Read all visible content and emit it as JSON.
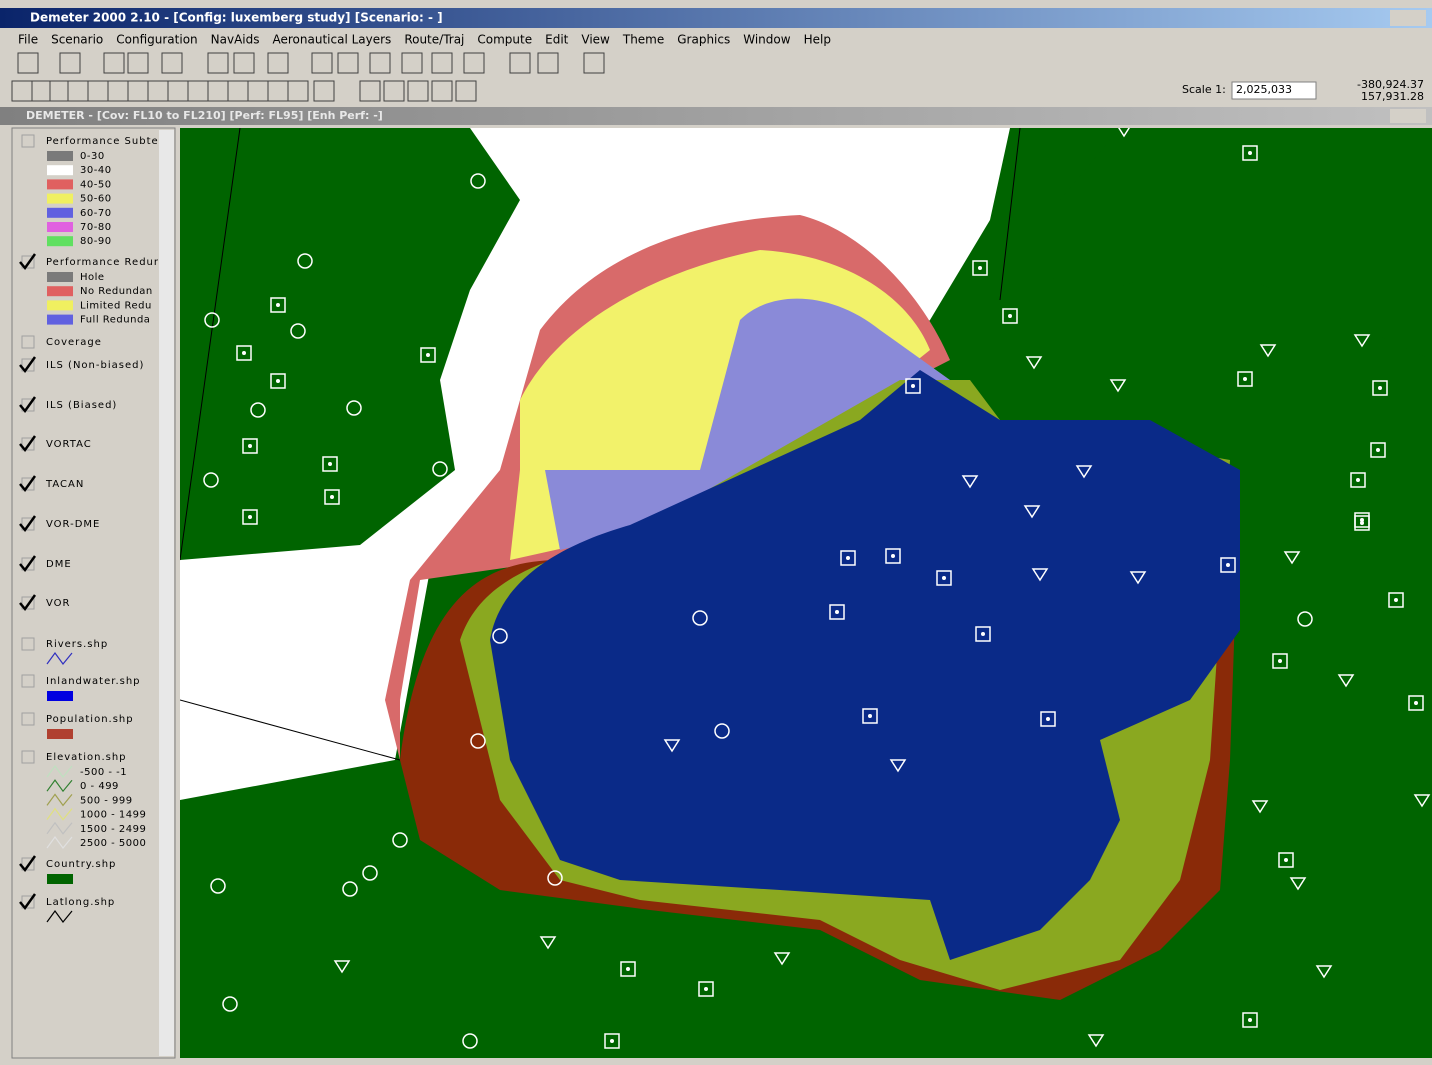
{
  "window": {
    "title": "Demeter 2000 2.10 - [Config: luxemberg study] [Scenario: - ]"
  },
  "menu": [
    "File",
    "Scenario",
    "Configuration",
    "NavAids",
    "Aeronautical Layers",
    "Route/Traj",
    "Compute",
    "Edit",
    "View",
    "Theme",
    "Graphics",
    "Window",
    "Help"
  ],
  "toolbar": {
    "scale_label": "Scale 1:",
    "scale_value": "2,025,033",
    "coord_x": "-380,924.37",
    "coord_y": "157,931.28"
  },
  "map_window": {
    "title": "DEMETER - [Cov: FL10 to FL210] [Perf: FL95] [Enh Perf: -]"
  },
  "layers": [
    {
      "name": "Performance Subte",
      "checked": false,
      "items": [
        {
          "label": "0-30",
          "swatch": "#7a7a7a"
        },
        {
          "label": "30-40",
          "swatch": "#ffffff"
        },
        {
          "label": "40-50",
          "swatch": "#e06060"
        },
        {
          "label": "50-60",
          "swatch": "#f0f060"
        },
        {
          "label": "60-70",
          "swatch": "#6060e0"
        },
        {
          "label": "70-80",
          "swatch": "#e060e0"
        },
        {
          "label": "80-90",
          "swatch": "#60e060"
        }
      ]
    },
    {
      "name": "Performance Redur",
      "checked": true,
      "items": [
        {
          "label": "Hole",
          "swatch": "#7a7a7a"
        },
        {
          "label": "No Redundan",
          "swatch": "#e06060"
        },
        {
          "label": "Limited Redu",
          "swatch": "#f0f060"
        },
        {
          "label": "Full Redunda",
          "swatch": "#6060e0"
        }
      ]
    },
    {
      "name": "Coverage",
      "checked": false,
      "items": []
    },
    {
      "name": "ILS (Non-biased)",
      "checked": true,
      "items": []
    },
    {
      "name": "ILS (Biased)",
      "checked": true,
      "items": []
    },
    {
      "name": "VORTAC",
      "checked": true,
      "items": []
    },
    {
      "name": "TACAN",
      "checked": true,
      "items": []
    },
    {
      "name": "VOR-DME",
      "checked": true,
      "items": []
    },
    {
      "name": "DME",
      "checked": true,
      "items": []
    },
    {
      "name": "VOR",
      "checked": true,
      "items": []
    },
    {
      "name": "Rivers.shp",
      "checked": false,
      "items": [
        {
          "line": "#3030c0"
        }
      ]
    },
    {
      "name": "Inlandwater.shp",
      "checked": false,
      "items": [
        {
          "swatch": "#0000e0"
        }
      ]
    },
    {
      "name": "Population.shp",
      "checked": false,
      "items": [
        {
          "swatch": "#b04030"
        }
      ]
    },
    {
      "name": "Elevation.shp",
      "checked": false,
      "items": [
        {
          "label": "-500 - -1",
          "line": "#c0e0c0"
        },
        {
          "label": "0 - 499",
          "line": "#308030"
        },
        {
          "label": "500 - 999",
          "line": "#a0a050"
        },
        {
          "label": "1000 - 1499",
          "line": "#e0e080"
        },
        {
          "label": "1500 - 2499",
          "line": "#c0c0c0"
        },
        {
          "label": "2500 - 5000",
          "line": "#e0e0e0"
        }
      ]
    },
    {
      "name": "Country.shp",
      "checked": true,
      "items": [
        {
          "swatch": "#006400"
        }
      ]
    },
    {
      "name": "Latlong.shp",
      "checked": true,
      "items": [
        {
          "line": "#000000"
        }
      ]
    }
  ]
}
